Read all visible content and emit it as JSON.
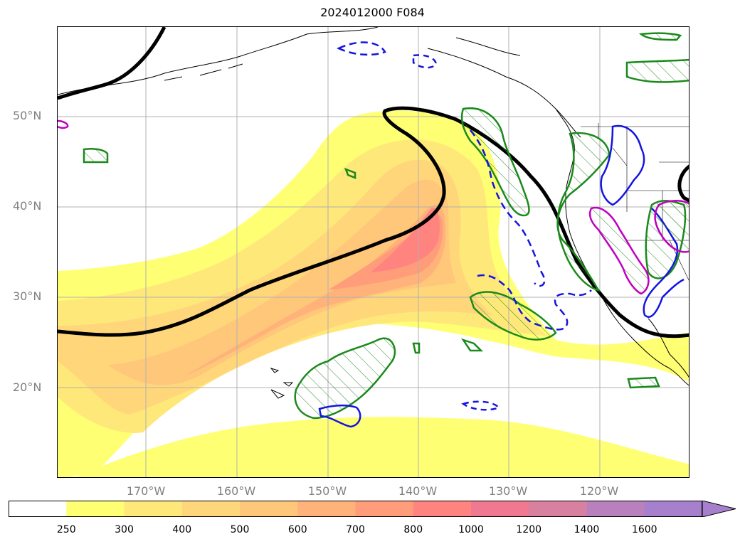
{
  "title": "2024012000 F084",
  "latitude_labels": [
    "50°N",
    "40°N",
    "30°N",
    "20°N"
  ],
  "longitude_labels": [
    "170°W",
    "160°W",
    "150°W",
    "140°W",
    "130°W",
    "120°W"
  ],
  "colorbar": {
    "levels": [
      "250",
      "300",
      "400",
      "500",
      "600",
      "700",
      "800",
      "1000",
      "1200",
      "1400",
      "1600"
    ],
    "colors": [
      "#ffffff",
      "#ffff73",
      "#ffe87a",
      "#ffd77a",
      "#ffc77a",
      "#ffb27a",
      "#ff9c7a",
      "#ff8480",
      "#f07890",
      "#d880a0",
      "#b880bc",
      "#a680cc"
    ],
    "extend": "max"
  },
  "layers": {
    "fill_field": "ivt-shading",
    "black_contour": "thick-black",
    "green_contours": "green-hatched",
    "blue_contours": "blue-solid-and-dashed",
    "magenta_contours": "magenta"
  }
}
